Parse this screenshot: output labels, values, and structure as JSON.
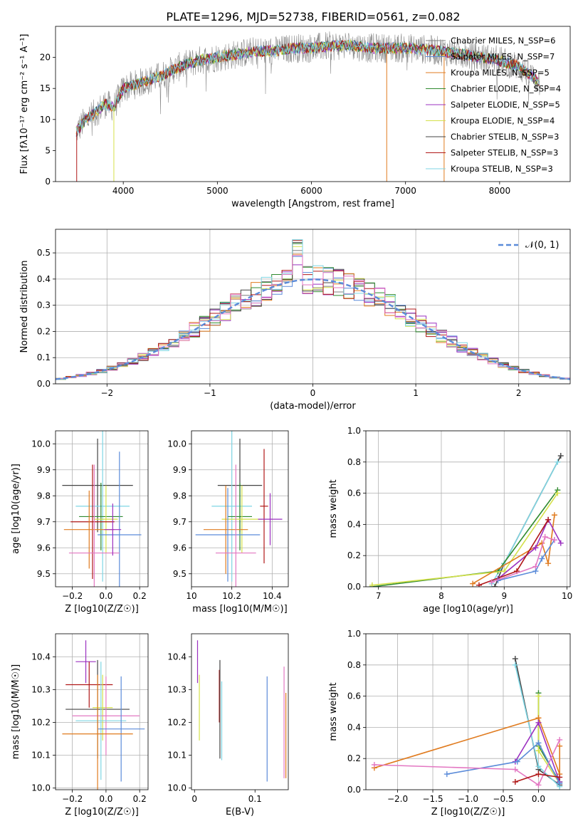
{
  "figure": {
    "title": "PLATE=1296, MJD=52738, FIBERID=0561, z=0.082"
  },
  "chart_data": [
    {
      "id": "spectrum",
      "type": "line",
      "xlabel": "wavelength [Angstrom, rest frame]",
      "ylabel": "Flux [fλ10⁻¹⁷ erg cm⁻² s⁻¹ A⁻¹]",
      "xlim": [
        3280,
        8750
      ],
      "ylim": [
        0,
        25
      ],
      "xticks": [
        4000,
        5000,
        6000,
        7000,
        8000
      ],
      "yticks": [
        0,
        5,
        10,
        15,
        20
      ],
      "grid": false,
      "legend_position": "right",
      "x_range_data": [
        3500,
        8430
      ],
      "continuum": {
        "x": [
          3500,
          3600,
          3700,
          3800,
          3900,
          4000,
          4100,
          4200,
          4400,
          4600,
          4800,
          5000,
          5200,
          5400,
          5600,
          5800,
          6000,
          6200,
          6400,
          6600,
          6800,
          7000,
          7200,
          7400,
          7600,
          7800,
          8000,
          8200,
          8430
        ],
        "y": [
          8,
          10,
          11,
          12.5,
          12,
          15,
          15.5,
          16,
          17,
          18.5,
          19.5,
          20,
          20.5,
          21,
          21,
          21.5,
          21.5,
          21.8,
          22,
          21.5,
          21.5,
          21.5,
          21.3,
          21,
          20.5,
          20,
          19.5,
          18.5,
          16
        ]
      },
      "series": [
        {
          "name": "Chabrier MILES, N_SSP=6",
          "color": "#7f7f7f",
          "width": 0.6
        },
        {
          "name": "Salpeter MILES, N_SSP=7",
          "color": "#5b8bd9",
          "width": 1.0
        },
        {
          "name": "Kroupa MILES, N_SSP=5",
          "color": "#e07b1f",
          "width": 1.0
        },
        {
          "name": "Chabrier ELODIE, N_SSP=4",
          "color": "#2f8a2f",
          "width": 1.0
        },
        {
          "name": "Salpeter ELODIE, N_SSP=5",
          "color": "#9b30c0",
          "width": 1.0
        },
        {
          "name": "Kroupa ELODIE, N_SSP=4",
          "color": "#d4e04a",
          "width": 1.0
        },
        {
          "name": "Chabrier STELIB, N_SSP=3",
          "color": "#444444",
          "width": 1.0
        },
        {
          "name": "Salpeter STELIB, N_SSP=3",
          "color": "#b01818",
          "width": 1.0
        },
        {
          "name": "Kroupa STELIB, N_SSP=3",
          "color": "#7fd6e4",
          "width": 1.0
        }
      ]
    },
    {
      "id": "residual-hist",
      "type": "bar",
      "xlabel": "(data-model)/error",
      "ylabel": "Normed distribution",
      "xlim": [
        -2.5,
        2.5
      ],
      "ylim": [
        0,
        0.59
      ],
      "xticks": [
        -2,
        -1,
        0,
        1,
        2
      ],
      "yticks": [
        0.0,
        0.1,
        0.2,
        0.3,
        0.4,
        0.5
      ],
      "grid": true,
      "legend_position": "top-right",
      "gaussian_label": "𝒩(0, 1)",
      "gaussian_color": "#5b8bd9",
      "bin_width": 0.1,
      "hist_colors": [
        "#7f7f7f",
        "#5b8bd9",
        "#e07b1f",
        "#2f8a2f",
        "#9b30c0",
        "#d4e04a",
        "#444444",
        "#b01818",
        "#7fd6e4",
        "#e377c2"
      ]
    },
    {
      "id": "age-vs-Z",
      "type": "scatter",
      "xlabel": "Z [log10(Z/Z☉)]",
      "ylabel": "age  [log10(age/yr)]",
      "xlim": [
        -0.3,
        0.25
      ],
      "ylim": [
        9.45,
        10.05
      ],
      "xticks": [
        -0.2,
        0.0,
        0.2
      ],
      "xtick_labels": [
        "−0.2",
        "0.0",
        "0.2"
      ],
      "yticks": [
        9.5,
        9.6,
        9.7,
        9.8,
        9.9,
        10.0
      ],
      "grid": true,
      "points": [
        {
          "x": -0.05,
          "y": 9.84,
          "xerr": 0.21,
          "yerr": 0.18,
          "color": "#444444"
        },
        {
          "x": -0.02,
          "y": 9.76,
          "xerr": 0.16,
          "yerr": 0.29,
          "color": "#7fd6e4"
        },
        {
          "x": -0.03,
          "y": 9.72,
          "xerr": 0.13,
          "yerr": 0.13,
          "color": "#2f8a2f"
        },
        {
          "x": 0.0,
          "y": 9.71,
          "xerr": 0.07,
          "yerr": 0.13,
          "color": "#d4e04a"
        },
        {
          "x": -0.08,
          "y": 9.7,
          "xerr": 0.13,
          "yerr": 0.22,
          "color": "#b01818"
        },
        {
          "x": -0.1,
          "y": 9.67,
          "xerr": 0.15,
          "yerr": 0.15,
          "color": "#e07b1f"
        },
        {
          "x": 0.08,
          "y": 9.65,
          "xerr": 0.13,
          "yerr": 0.32,
          "color": "#5b8bd9"
        },
        {
          "x": -0.07,
          "y": 9.58,
          "xerr": 0.15,
          "yerr": 0.34,
          "color": "#e377c2"
        },
        {
          "x": 0.04,
          "y": 9.67,
          "xerr": 0.05,
          "yerr": 0.1,
          "color": "#9b30c0"
        }
      ]
    },
    {
      "id": "age-vs-mass",
      "type": "scatter",
      "xlabel": "mass [log10(M/M☉)]",
      "xlim": [
        10.0,
        10.48
      ],
      "ylim": [
        9.45,
        10.05
      ],
      "xticks": [
        10.0,
        10.2,
        10.4
      ],
      "yticks": [
        9.5,
        9.6,
        9.7,
        9.8,
        9.9,
        10.0
      ],
      "grid": true,
      "points": [
        {
          "x": 10.24,
          "y": 9.84,
          "xerr": 0.11,
          "yerr": 0.18,
          "color": "#444444"
        },
        {
          "x": 10.2,
          "y": 9.76,
          "xerr": 0.1,
          "yerr": 0.29,
          "color": "#7fd6e4"
        },
        {
          "x": 10.24,
          "y": 9.72,
          "xerr": 0.06,
          "yerr": 0.13,
          "color": "#2f8a2f"
        },
        {
          "x": 10.25,
          "y": 9.71,
          "xerr": 0.1,
          "yerr": 0.13,
          "color": "#d4e04a"
        },
        {
          "x": 10.36,
          "y": 9.76,
          "xerr": 0.02,
          "yerr": 0.22,
          "color": "#b01818"
        },
        {
          "x": 10.17,
          "y": 9.67,
          "xerr": 0.11,
          "yerr": 0.17,
          "color": "#e07b1f"
        },
        {
          "x": 10.18,
          "y": 9.65,
          "xerr": 0.16,
          "yerr": 0.18,
          "color": "#5b8bd9"
        },
        {
          "x": 10.22,
          "y": 9.58,
          "xerr": 0.1,
          "yerr": 0.34,
          "color": "#e377c2"
        },
        {
          "x": 10.39,
          "y": 9.71,
          "xerr": 0.06,
          "yerr": 0.1,
          "color": "#9b30c0"
        }
      ]
    },
    {
      "id": "weight-vs-age",
      "type": "line",
      "xlabel": "age  [log10(age/yr)]",
      "ylabel": "mass weight",
      "xlim": [
        6.8,
        10.05
      ],
      "ylim": [
        0,
        1.0
      ],
      "xticks": [
        7,
        8,
        9,
        10
      ],
      "yticks": [
        0.0,
        0.2,
        0.4,
        0.6,
        0.8,
        1.0
      ],
      "grid": true,
      "series": [
        {
          "color": "#444444",
          "x": [
            8.85,
            9.0,
            9.9
          ],
          "y": [
            0.0,
            0.15,
            0.84
          ]
        },
        {
          "color": "#7fd6e4",
          "x": [
            8.8,
            9.0,
            9.85
          ],
          "y": [
            0.02,
            0.15,
            0.8
          ]
        },
        {
          "color": "#2f8a2f",
          "x": [
            6.9,
            8.9,
            9.85
          ],
          "y": [
            0.0,
            0.1,
            0.62
          ]
        },
        {
          "color": "#d4e04a",
          "x": [
            6.9,
            9.0,
            9.85
          ],
          "y": [
            0.01,
            0.1,
            0.6
          ]
        },
        {
          "color": "#e07b1f",
          "x": [
            8.5,
            9.6,
            9.7,
            9.8
          ],
          "y": [
            0.02,
            0.28,
            0.15,
            0.46
          ]
        },
        {
          "color": "#9b30c0",
          "x": [
            8.9,
            9.5,
            9.7,
            9.9
          ],
          "y": [
            0.05,
            0.25,
            0.43,
            0.28
          ]
        },
        {
          "color": "#b01818",
          "x": [
            8.6,
            9.2,
            9.7
          ],
          "y": [
            0.01,
            0.1,
            0.43
          ]
        },
        {
          "color": "#5b8bd9",
          "x": [
            8.9,
            9.5,
            9.6,
            9.8
          ],
          "y": [
            0.04,
            0.1,
            0.18,
            0.3
          ]
        },
        {
          "color": "#e377c2",
          "x": [
            8.8,
            9.5,
            9.65,
            9.8
          ],
          "y": [
            0.03,
            0.13,
            0.32,
            0.3
          ]
        }
      ]
    },
    {
      "id": "mass-vs-Z",
      "type": "scatter",
      "xlabel": "Z [log10(Z/Z☉)]",
      "ylabel": "mass [log10(M/M☉)]",
      "xlim": [
        -0.3,
        0.25
      ],
      "ylim": [
        9.995,
        10.47
      ],
      "xticks": [
        -0.2,
        0.0,
        0.2
      ],
      "xtick_labels": [
        "−0.2",
        "0.0",
        "0.2"
      ],
      "yticks": [
        10.0,
        10.1,
        10.2,
        10.3,
        10.4
      ],
      "grid": true,
      "points": [
        {
          "x": -0.12,
          "y": 10.385,
          "xerr": 0.06,
          "yerr": 0.065,
          "color": "#9b30c0"
        },
        {
          "x": -0.1,
          "y": 10.315,
          "xerr": 0.14,
          "yerr": 0.07,
          "color": "#b01818"
        },
        {
          "x": -0.05,
          "y": 10.24,
          "xerr": 0.19,
          "yerr": 0.15,
          "color": "#444444"
        },
        {
          "x": -0.02,
          "y": 10.245,
          "xerr": 0.06,
          "yerr": 0.1,
          "color": "#d4e04a"
        },
        {
          "x": 0.0,
          "y": 10.22,
          "xerr": 0.2,
          "yerr": 0.12,
          "color": "#e377c2"
        },
        {
          "x": -0.03,
          "y": 10.205,
          "xerr": 0.15,
          "yerr": 0.18,
          "color": "#7fd6e4"
        },
        {
          "x": 0.09,
          "y": 10.18,
          "xerr": 0.14,
          "yerr": 0.16,
          "color": "#5b8bd9"
        },
        {
          "x": -0.05,
          "y": 10.165,
          "xerr": 0.21,
          "yerr": 0.18,
          "color": "#e07b1f"
        }
      ]
    },
    {
      "id": "mass-vs-EBV",
      "type": "scatter",
      "xlabel": "E(B-V)",
      "xlim": [
        -0.005,
        0.155
      ],
      "ylim": [
        9.995,
        10.47
      ],
      "xticks": [
        0.0,
        0.1
      ],
      "yticks": [
        10.0,
        10.1,
        10.2,
        10.3,
        10.4
      ],
      "grid": false,
      "points": [
        {
          "x": 0.005,
          "y": 10.385,
          "yerr": 0.065,
          "color": "#9b30c0"
        },
        {
          "x": 0.008,
          "y": 10.245,
          "yerr": 0.1,
          "color": "#d4e04a"
        },
        {
          "x": 0.041,
          "y": 10.28,
          "yerr": 0.08,
          "color": "#b01818"
        },
        {
          "x": 0.042,
          "y": 10.24,
          "yerr": 0.15,
          "color": "#444444"
        },
        {
          "x": 0.045,
          "y": 10.205,
          "yerr": 0.12,
          "color": "#7fd6e4"
        },
        {
          "x": 0.12,
          "y": 10.18,
          "yerr": 0.16,
          "color": "#5b8bd9"
        },
        {
          "x": 0.148,
          "y": 10.2,
          "yerr": 0.17,
          "color": "#e377c2"
        },
        {
          "x": 0.151,
          "y": 10.16,
          "yerr": 0.13,
          "color": "#e07b1f"
        }
      ]
    },
    {
      "id": "weight-vs-Z",
      "type": "line",
      "xlabel": "Z [log10(Z/Z☉)]",
      "ylabel": "mass weight",
      "xlim": [
        -2.45,
        0.45
      ],
      "ylim": [
        0,
        1.0
      ],
      "xticks": [
        -2.0,
        -1.5,
        -1.0,
        -0.5,
        0.0
      ],
      "xtick_labels": [
        "−2.0",
        "−1.5",
        "−1.0",
        "−0.5",
        "0.0"
      ],
      "yticks": [
        0.0,
        0.2,
        0.4,
        0.6,
        0.8,
        1.0
      ],
      "grid": true,
      "series": [
        {
          "color": "#444444",
          "x": [
            -0.33,
            0.0,
            0.3
          ],
          "y": [
            0.84,
            0.13,
            0.03
          ]
        },
        {
          "color": "#7fd6e4",
          "x": [
            -0.33,
            0.0,
            0.3
          ],
          "y": [
            0.8,
            0.15,
            0.02
          ]
        },
        {
          "color": "#2f8a2f",
          "x": [
            0.0,
            0.0,
            0.3
          ],
          "y": [
            0.62,
            0.28,
            0.05
          ]
        },
        {
          "color": "#d4e04a",
          "x": [
            0.0,
            0.0,
            0.3
          ],
          "y": [
            0.6,
            0.25,
            0.04
          ]
        },
        {
          "color": "#e07b1f",
          "x": [
            -2.33,
            0.0,
            0.3,
            0.3
          ],
          "y": [
            0.14,
            0.46,
            0.1,
            0.28
          ]
        },
        {
          "color": "#9b30c0",
          "x": [
            -0.33,
            0.0,
            0.3
          ],
          "y": [
            0.18,
            0.43,
            0.05
          ]
        },
        {
          "color": "#5b8bd9",
          "x": [
            -1.3,
            -0.3,
            0.0,
            0.3
          ],
          "y": [
            0.1,
            0.18,
            0.3,
            0.04
          ]
        },
        {
          "color": "#e377c2",
          "x": [
            -2.33,
            -0.33,
            0.0,
            0.3
          ],
          "y": [
            0.16,
            0.13,
            0.03,
            0.32
          ]
        },
        {
          "color": "#b01818",
          "x": [
            -0.33,
            0.0,
            0.3
          ],
          "y": [
            0.05,
            0.1,
            0.08
          ]
        }
      ]
    }
  ]
}
